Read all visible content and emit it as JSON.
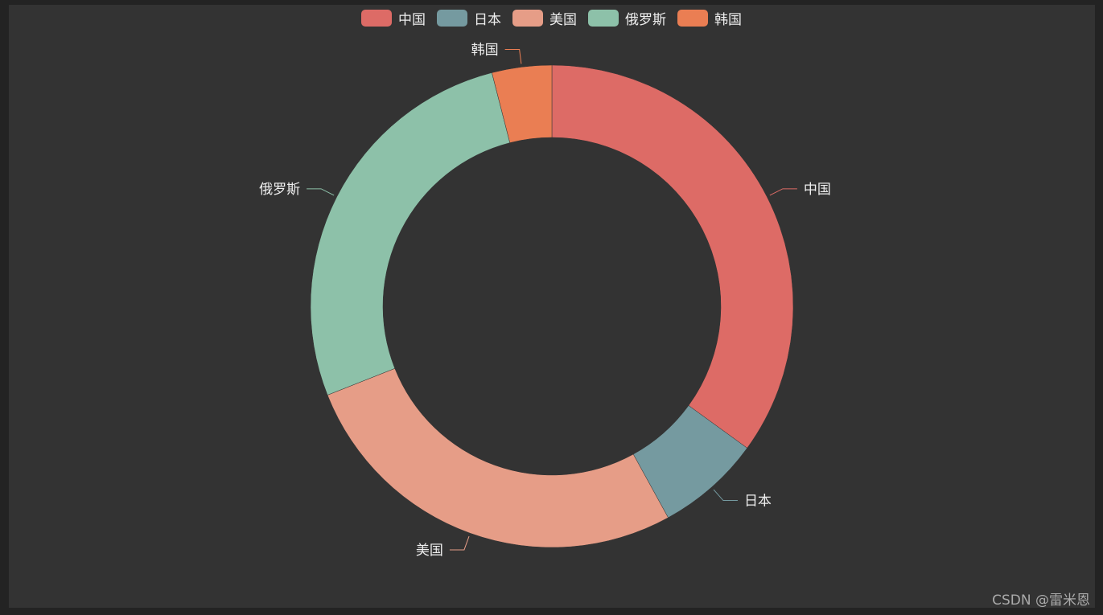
{
  "chart_data": {
    "type": "pie",
    "variant": "donut",
    "categories": [
      "中国",
      "日本",
      "美国",
      "俄罗斯",
      "韩国"
    ],
    "values": [
      35,
      7,
      27,
      27,
      4
    ],
    "colors": [
      "#dd6b66",
      "#759aa0",
      "#e69d87",
      "#8dc1a9",
      "#ea7e53"
    ],
    "legend_position": "top-center",
    "labels_outside": true
  },
  "watermark": "CSDN @雷米恩"
}
